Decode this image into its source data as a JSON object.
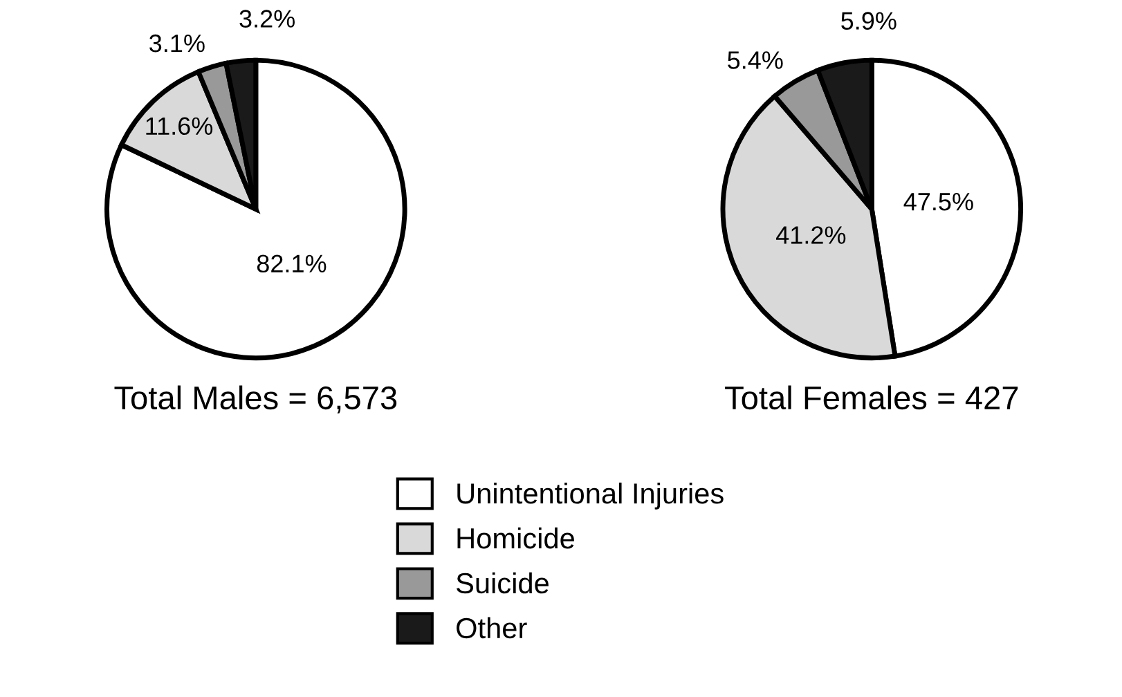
{
  "chart_data": [
    {
      "type": "pie",
      "categories": [
        "Unintentional Injuries",
        "Homicide",
        "Suicide",
        "Other"
      ],
      "values": [
        82.1,
        11.6,
        3.1,
        3.2
      ],
      "colors": [
        "#ffffff",
        "#d9d9d9",
        "#999999",
        "#1a1a1a"
      ],
      "value_labels": [
        "82.1%",
        "11.6%",
        "3.1%",
        "3.2%"
      ],
      "xlabel": "Total Males = 6,573",
      "legend": "bottom"
    },
    {
      "type": "pie",
      "categories": [
        null,
        null,
        null,
        null
      ],
      "values": [
        47.5,
        41.2,
        5.4,
        5.9
      ],
      "colors": [
        "#ffffff",
        "#d9d9d9",
        "#999999",
        "#1a1a1a"
      ],
      "value_labels": [
        "47.5%",
        "41.2%",
        "5.4%",
        "5.9%"
      ],
      "xlabel": "Total Females = 427"
    }
  ]
}
